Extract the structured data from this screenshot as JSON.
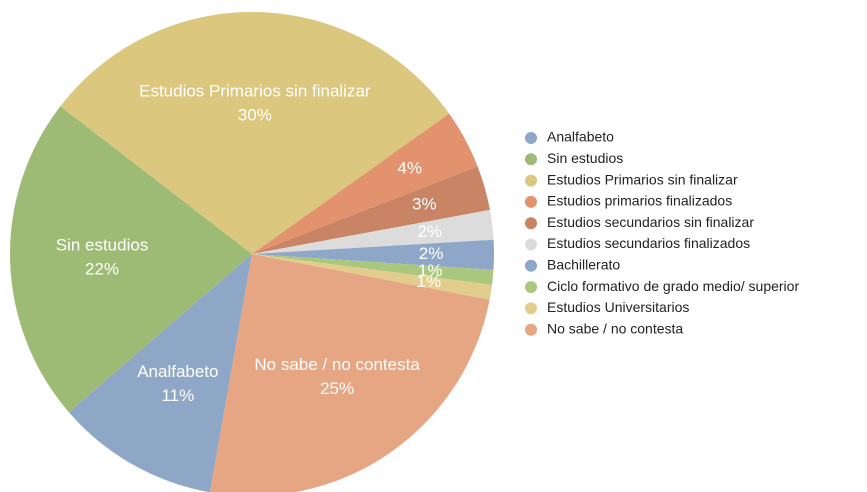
{
  "chart_data": {
    "type": "pie",
    "categories": [
      "Analfabeto",
      "Sin estudios",
      "Estudios Primarios sin finalizar",
      "Estudios primarios finalizados",
      "Estudios secundarios sin finalizar",
      "Estudios secundarios finalizados",
      "Bachillerato",
      "Ciclo formativo de grado medio/ superior",
      "Estudios Universitarios",
      "No sabe / no contesta"
    ],
    "values": [
      11,
      22,
      30,
      4,
      3,
      2,
      2,
      1,
      1,
      25
    ],
    "value_labels": [
      "11%",
      "22%",
      "30%",
      "4%",
      "3%",
      "2%",
      "2%",
      "1%",
      "1%",
      "25%"
    ],
    "colors": [
      "#8fa7c6",
      "#9dbb74",
      "#dcc77e",
      "#e2926c",
      "#c98466",
      "#dcdcdc",
      "#8ea7c9",
      "#a9c87e",
      "#e3cd8c",
      "#e6a583"
    ],
    "legend": "right"
  }
}
